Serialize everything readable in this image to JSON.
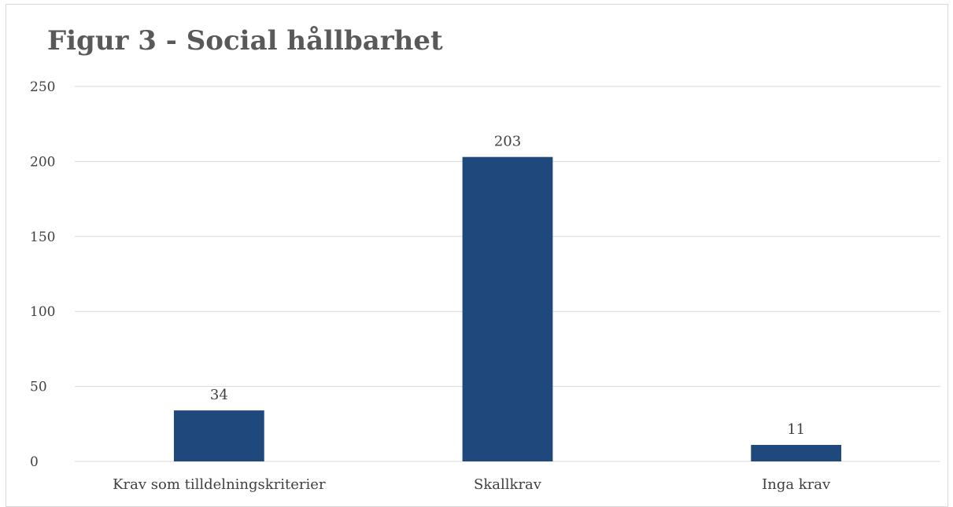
{
  "chart_data": {
    "type": "bar",
    "title": "Figur 3 - Social hållbarhet",
    "xlabel": "",
    "ylabel": "",
    "categories": [
      "Krav som tilldelningskriterier",
      "Skallkrav",
      "Inga krav"
    ],
    "values": [
      34,
      203,
      11
    ],
    "data_labels": [
      "34",
      "203",
      "11"
    ],
    "ylim": [
      0,
      250
    ],
    "yticks": [
      0,
      50,
      100,
      150,
      200,
      250
    ],
    "ytick_labels": [
      "0",
      "50",
      "100",
      "150",
      "200",
      "250"
    ],
    "grid": true,
    "legend": "none",
    "colors": {
      "bar": "#1f497d",
      "grid": "#d9d9d9",
      "text": "#404040",
      "title": "#595959"
    }
  }
}
